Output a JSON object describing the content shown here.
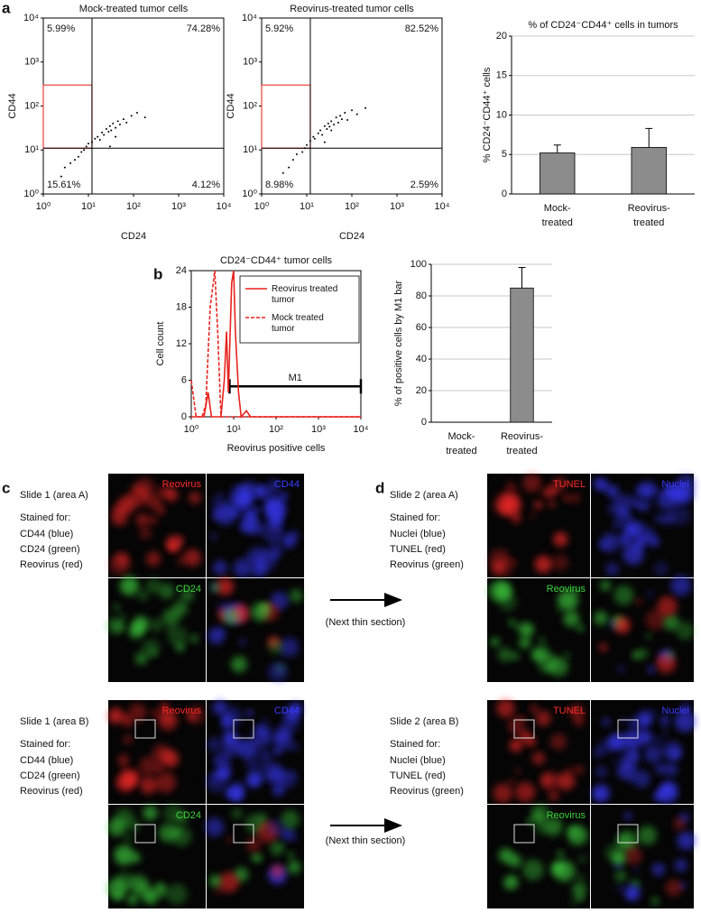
{
  "panel_labels": [
    "a",
    "b",
    "c",
    "d"
  ],
  "chart_data": [
    {
      "type": "scatter",
      "title": "Mock-treated tumor cells",
      "x_label": "CD24",
      "y_label": "CD44",
      "xscale": "log",
      "yscale": "log",
      "xlim": [
        1,
        10000
      ],
      "ylim": [
        1,
        10000
      ],
      "xticks": [
        {
          "value": 1,
          "label": "10⁰"
        },
        {
          "value": 10,
          "label": "10¹"
        },
        {
          "value": 100,
          "label": "10²"
        },
        {
          "value": 1000,
          "label": "10³"
        },
        {
          "value": 10000,
          "label": "10⁴"
        }
      ],
      "yticks": [
        {
          "value": 1,
          "label": "10⁰"
        },
        {
          "value": 10,
          "label": "10¹"
        },
        {
          "value": 100,
          "label": "10²"
        },
        {
          "value": 1000,
          "label": "10³"
        },
        {
          "value": 10000,
          "label": "10⁴"
        }
      ],
      "quadrant_x": 12,
      "quadrant_y": 11,
      "gate": {
        "x": [
          1,
          12
        ],
        "y": [
          11,
          300
        ],
        "color": "#e8423a"
      },
      "quadrant_labels": [
        "5.99%",
        "74.28%",
        "15.61%",
        "4.12%"
      ],
      "color": "#000000",
      "x": [
        2.5,
        3,
        4,
        5,
        6,
        7,
        8,
        9,
        10,
        12,
        14,
        16,
        18,
        20,
        22,
        25,
        28,
        30,
        32,
        35,
        40,
        45,
        50,
        60,
        70,
        90,
        120,
        180,
        30,
        40
      ],
      "values": [
        2.5,
        4,
        5,
        6,
        7,
        9,
        10,
        12,
        14,
        15,
        18,
        20,
        17,
        25,
        22,
        30,
        26,
        35,
        28,
        40,
        32,
        45,
        38,
        50,
        42,
        60,
        70,
        55,
        12,
        20
      ]
    },
    {
      "type": "scatter",
      "title": "Reovirus-treated tumor cells",
      "x_label": "CD24",
      "y_label": "CD44",
      "xscale": "log",
      "yscale": "log",
      "xlim": [
        1,
        10000
      ],
      "ylim": [
        1,
        10000
      ],
      "xticks": [
        {
          "value": 1,
          "label": "10⁰"
        },
        {
          "value": 10,
          "label": "10¹"
        },
        {
          "value": 100,
          "label": "10²"
        },
        {
          "value": 1000,
          "label": "10³"
        },
        {
          "value": 10000,
          "label": "10⁴"
        }
      ],
      "yticks": [
        {
          "value": 1,
          "label": "10⁰"
        },
        {
          "value": 10,
          "label": "10¹"
        },
        {
          "value": 100,
          "label": "10²"
        },
        {
          "value": 1000,
          "label": "10³"
        },
        {
          "value": 10000,
          "label": "10⁴"
        }
      ],
      "quadrant_x": 12,
      "quadrant_y": 11,
      "gate": {
        "x": [
          1,
          12
        ],
        "y": [
          11,
          300
        ],
        "color": "#e8423a"
      },
      "quadrant_labels": [
        "5.92%",
        "82.52%",
        "8.98%",
        "2.59%"
      ],
      "color": "#000000",
      "x": [
        3,
        4,
        5,
        6,
        8,
        9,
        10,
        12,
        14,
        15,
        18,
        20,
        22,
        25,
        28,
        30,
        32,
        35,
        40,
        45,
        50,
        55,
        60,
        70,
        80,
        100,
        130,
        200,
        25,
        35
      ],
      "values": [
        3,
        4,
        6,
        8,
        9,
        11,
        13,
        16,
        20,
        18,
        24,
        28,
        22,
        35,
        30,
        40,
        34,
        45,
        38,
        55,
        42,
        60,
        50,
        70,
        48,
        80,
        65,
        90,
        15,
        28
      ]
    },
    {
      "type": "bar",
      "title": "% of CD24⁻CD44⁺ cells in tumors",
      "y_label": "% CD24⁻CD44⁺ cells",
      "categories": [
        "Mock-\ntreated",
        "Reovirus-\ntreated"
      ],
      "values": [
        5.2,
        5.9
      ],
      "errors": [
        1.0,
        2.4
      ],
      "color": "#8c8c8c",
      "ylim": [
        0,
        20
      ],
      "yticks": [
        0,
        5,
        10,
        15,
        20
      ],
      "grid": true
    },
    {
      "type": "line",
      "title": "CD24⁻CD44⁺ tumor cells",
      "x_label": "Reovirus positive cells",
      "y_label": "Cell count",
      "xscale": "log",
      "xlim": [
        1,
        10000
      ],
      "ylim": [
        0,
        24
      ],
      "xticks": [
        {
          "value": 1,
          "label": "10⁰"
        },
        {
          "value": 10,
          "label": "10¹"
        },
        {
          "value": 100,
          "label": "10²"
        },
        {
          "value": 1000,
          "label": "10³"
        },
        {
          "value": 10000,
          "label": "10⁴"
        }
      ],
      "yticks": [
        0,
        6,
        12,
        18,
        24
      ],
      "legend": "top-right",
      "series": [
        {
          "name": "Reovirus treated tumor",
          "color": "#e8231e",
          "dash": false,
          "x": [
            1,
            2,
            2.5,
            3,
            5,
            6,
            6.8,
            7.5,
            9,
            10,
            11,
            13,
            15,
            20,
            25,
            10000
          ],
          "values": [
            0,
            0,
            4,
            0,
            0,
            6,
            14,
            4,
            22,
            24,
            14,
            4,
            0,
            1,
            0,
            0
          ]
        },
        {
          "name": "Mock treated tumor",
          "color": "#e8231e",
          "dash": true,
          "x": [
            1,
            1.3,
            1.8,
            2.2,
            2.8,
            3.3,
            3.6,
            4.2,
            5,
            10000
          ],
          "values": [
            6,
            0,
            0,
            2,
            18,
            22,
            24,
            14,
            0,
            0
          ]
        }
      ],
      "annotation": {
        "text": "M1",
        "x": [
          8,
          10000
        ],
        "y": 5
      }
    },
    {
      "type": "bar",
      "y_label": "% of positive cells by M1 bar",
      "categories": [
        "Mock-\ntreated",
        "Reovirus-\ntreated"
      ],
      "values": [
        0,
        85
      ],
      "errors": [
        0,
        13
      ],
      "color": "#8c8c8c",
      "ylim": [
        0,
        100
      ],
      "yticks": [
        0,
        20,
        40,
        60,
        80,
        100
      ],
      "grid": true
    }
  ],
  "micrographs": [
    {
      "title": "Slide 1 (area A)",
      "stain_heading": "Stained for:",
      "stains": [
        "CD44 (blue)",
        "CD24 (green)",
        "Reovirus (red)"
      ],
      "channels": [
        "Reovirus",
        "CD44",
        "CD24"
      ],
      "channel_colors": [
        "#ff2a2a",
        "#3b3bff",
        "#3fd13f"
      ]
    },
    {
      "title": "Slide 1 (area B)",
      "stain_heading": "Stained for:",
      "stains": [
        "CD44 (blue)",
        "CD24 (green)",
        "Reovirus (red)"
      ],
      "channels": [
        "Reovirus",
        "CD44",
        "CD24"
      ],
      "channel_colors": [
        "#ff2a2a",
        "#3b3bff",
        "#3fd13f"
      ]
    },
    {
      "title": "Slide 2 (area A)",
      "stain_heading": "Stained for:",
      "stains": [
        "Nuclei (blue)",
        "TUNEL (red)",
        "Reovirus (green)"
      ],
      "channels": [
        "TUNEL",
        "Nuclei",
        "Reovirus"
      ],
      "channel_colors": [
        "#ff2a2a",
        "#3b3bff",
        "#3fd13f"
      ]
    },
    {
      "title": "Slide 2 (area B)",
      "stain_heading": "Stained for:",
      "stains": [
        "Nuclei (blue)",
        "TUNEL (red)",
        "Reovirus (green)"
      ],
      "channels": [
        "TUNEL",
        "Nuclei",
        "Reovirus"
      ],
      "channel_colors": [
        "#ff2a2a",
        "#3b3bff",
        "#3fd13f"
      ]
    }
  ],
  "arrow_labels": [
    "(Next thin section)",
    "(Next thin section)"
  ]
}
